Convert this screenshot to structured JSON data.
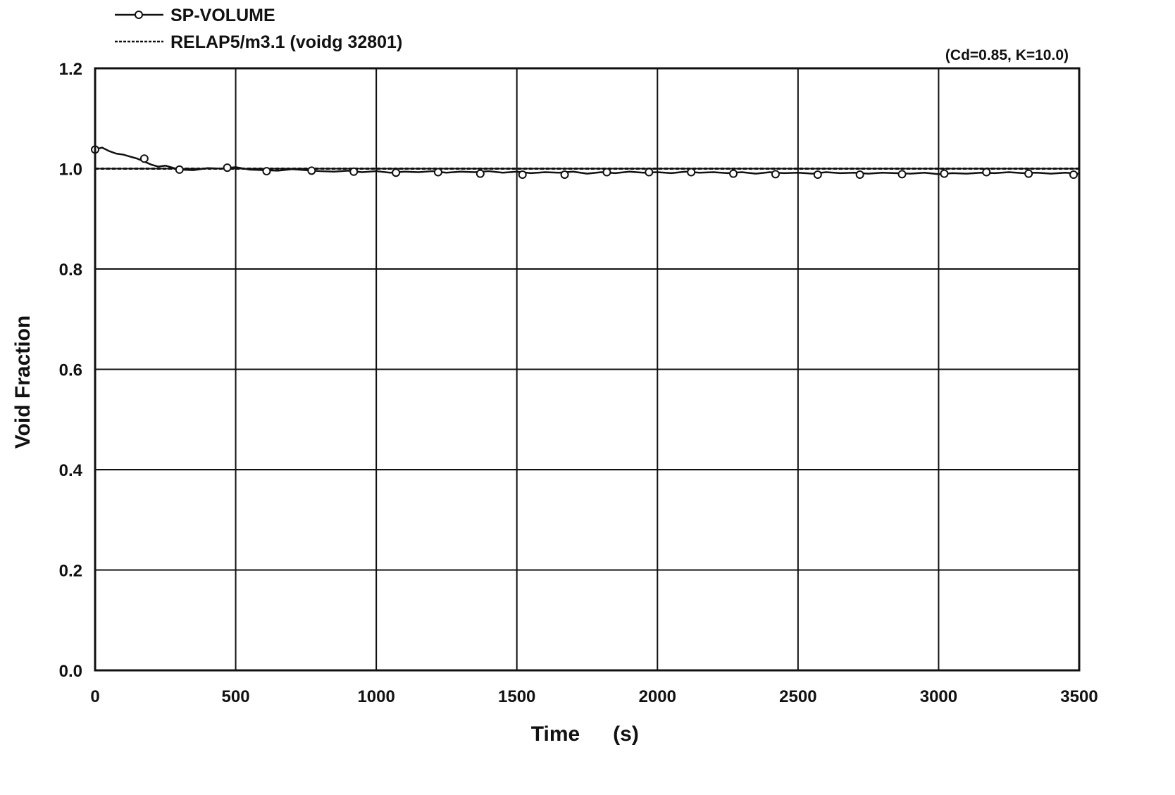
{
  "chart_data": {
    "type": "line",
    "xlabel": "Time (s)",
    "xlabel_parts": [
      "Time",
      "(s)"
    ],
    "ylabel": "Void Fraction",
    "annotation": "(Cd=0.85, K=10.0)",
    "xlim": [
      0,
      3500
    ],
    "ylim": [
      0.0,
      1.2
    ],
    "x_ticks": [
      0,
      500,
      1000,
      1500,
      2000,
      2500,
      3000,
      3500
    ],
    "x_tick_labels": [
      "0",
      "500",
      "1000",
      "1500",
      "2000",
      "2500",
      "3000",
      "3500"
    ],
    "y_ticks": [
      0.0,
      0.2,
      0.4,
      0.6,
      0.8,
      1.0,
      1.2
    ],
    "y_tick_labels": [
      "0.0",
      "0.2",
      "0.4",
      "0.6",
      "0.8",
      "1.0",
      "1.2"
    ],
    "grid": true,
    "legend_position": "top-left, above plot",
    "series": [
      {
        "name": "SP-VOLUME",
        "style": "solid line with open circle markers",
        "x": [
          0,
          25,
          50,
          75,
          100,
          125,
          150,
          175,
          200,
          225,
          250,
          300,
          350,
          400,
          450,
          500,
          550,
          600,
          650,
          700,
          750,
          800,
          850,
          900,
          950,
          1000,
          1050,
          1100,
          1150,
          1200,
          1250,
          1300,
          1350,
          1400,
          1450,
          1500,
          1550,
          1600,
          1650,
          1700,
          1750,
          1800,
          1850,
          1900,
          1950,
          2000,
          2050,
          2100,
          2150,
          2200,
          2250,
          2300,
          2350,
          2400,
          2450,
          2500,
          2550,
          2600,
          2650,
          2700,
          2750,
          2800,
          2850,
          2900,
          2950,
          3000,
          3050,
          3100,
          3150,
          3200,
          3250,
          3300,
          3350,
          3400,
          3450,
          3500
        ],
        "y": [
          1.038,
          1.042,
          1.035,
          1.03,
          1.028,
          1.024,
          1.02,
          1.014,
          1.008,
          1.004,
          1.006,
          0.998,
          0.997,
          1.001,
          1.0,
          1.003,
          0.998,
          0.997,
          0.996,
          0.999,
          0.997,
          0.995,
          0.994,
          0.996,
          0.993,
          0.995,
          0.992,
          0.994,
          0.993,
          0.995,
          0.992,
          0.994,
          0.993,
          0.995,
          0.992,
          0.994,
          0.991,
          0.993,
          0.992,
          0.994,
          0.99,
          0.993,
          0.991,
          0.994,
          0.992,
          0.993,
          0.991,
          0.994,
          0.992,
          0.993,
          0.991,
          0.993,
          0.99,
          0.993,
          0.991,
          0.992,
          0.99,
          0.993,
          0.991,
          0.992,
          0.99,
          0.992,
          0.991,
          0.99,
          0.992,
          0.989,
          0.991,
          0.99,
          0.992,
          0.991,
          0.993,
          0.991,
          0.992,
          0.99,
          0.992,
          0.99
        ],
        "marker_x": [
          0,
          175,
          300,
          470,
          610,
          770,
          920,
          1070,
          1220,
          1370,
          1520,
          1670,
          1820,
          1970,
          2120,
          2270,
          2420,
          2570,
          2720,
          2870,
          3020,
          3170,
          3320,
          3480
        ],
        "marker_y": [
          1.038,
          1.02,
          0.998,
          1.002,
          0.995,
          0.996,
          0.994,
          0.992,
          0.993,
          0.99,
          0.988,
          0.988,
          0.993,
          0.993,
          0.993,
          0.99,
          0.989,
          0.988,
          0.988,
          0.989,
          0.99,
          0.993,
          0.99,
          0.988
        ]
      },
      {
        "name": "RELAP5/m3.1 (voidg 32801)",
        "style": "dashed/dotted line",
        "x": [
          0,
          3500
        ],
        "y": [
          1.0,
          1.0
        ]
      }
    ]
  }
}
